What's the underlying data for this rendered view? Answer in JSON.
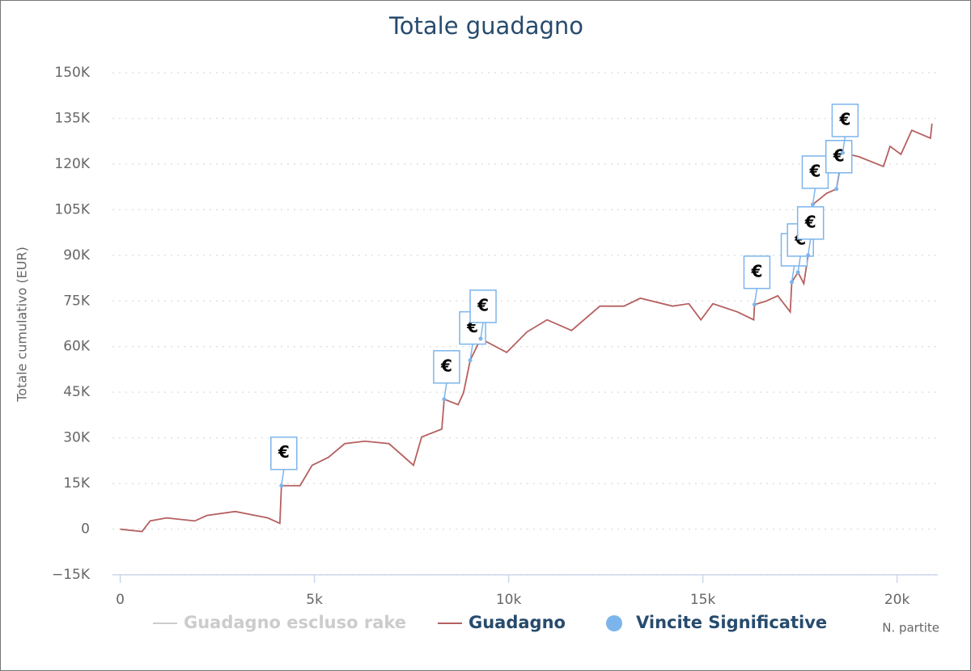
{
  "chart_data": {
    "type": "line",
    "title": "Totale guadagno",
    "y_axis_label": "Totale cumulativo (EUR)",
    "x_axis_label": "N. partite",
    "xlim": [
      -200,
      21050
    ],
    "ylim": [
      -15000,
      150000
    ],
    "xticks": [
      0,
      {
        "value": 5000,
        "label": "5k"
      },
      {
        "value": 10000,
        "label": "10k"
      },
      {
        "value": 15000,
        "label": "15k"
      },
      {
        "value": 20000,
        "label": "20k"
      }
    ],
    "yticks": [
      {
        "value": -15000,
        "label": "−15K"
      },
      0,
      {
        "value": 15000,
        "label": "15K"
      },
      {
        "value": 30000,
        "label": "30K"
      },
      {
        "value": 45000,
        "label": "45K"
      },
      {
        "value": 60000,
        "label": "60K"
      },
      {
        "value": 75000,
        "label": "75K"
      },
      {
        "value": 90000,
        "label": "90K"
      },
      {
        "value": 105000,
        "label": "105K"
      },
      {
        "value": 120000,
        "label": "120K"
      },
      {
        "value": 135000,
        "label": "135K"
      },
      {
        "value": 150000,
        "label": "150K"
      }
    ],
    "grid": true,
    "series": [
      {
        "name": "Guadagno escluso rake",
        "color": "#cccccc",
        "visible": false
      },
      {
        "name": "Guadagno",
        "color": "#b5605f",
        "visible": true,
        "x": [
          0,
          560,
          770,
          1190,
          1920,
          2230,
          2960,
          3800,
          4110,
          4150,
          4630,
          4940,
          5360,
          5780,
          6300,
          6920,
          7550,
          7760,
          8280,
          8340,
          8700,
          8840,
          9010,
          9280,
          9950,
          10470,
          10990,
          11620,
          12350,
          12970,
          13390,
          14220,
          14640,
          14950,
          15260,
          15890,
          16310,
          16330,
          16620,
          16930,
          17250,
          17290,
          17450,
          17600,
          17710,
          17830,
          18190,
          18440,
          18600,
          19020,
          19650,
          19820,
          20100,
          20380,
          20860,
          20900
        ],
        "values": [
          0,
          -800,
          2700,
          3700,
          2700,
          4500,
          5800,
          3700,
          1900,
          14300,
          14300,
          21000,
          23600,
          28100,
          28900,
          28100,
          21000,
          30300,
          32900,
          42700,
          40900,
          44900,
          55500,
          62600,
          58100,
          64800,
          68800,
          65300,
          73300,
          73300,
          75900,
          73300,
          74100,
          68800,
          74100,
          71400,
          68800,
          73800,
          74900,
          76700,
          71400,
          81200,
          84400,
          80700,
          90000,
          106700,
          110400,
          111800,
          123700,
          122400,
          119200,
          125800,
          123200,
          131100,
          128500,
          133300
        ]
      },
      {
        "name": "Vincite Significative",
        "color": "#7cb5ec",
        "visible": true,
        "flag_label": "€",
        "x": [
          4150,
          8340,
          9010,
          9280,
          16330,
          17290,
          17450,
          17710,
          17830,
          18440,
          18600
        ],
        "values": [
          14300,
          42700,
          55500,
          62600,
          73800,
          81200,
          84400,
          90000,
          106700,
          111800,
          123700
        ]
      }
    ]
  }
}
